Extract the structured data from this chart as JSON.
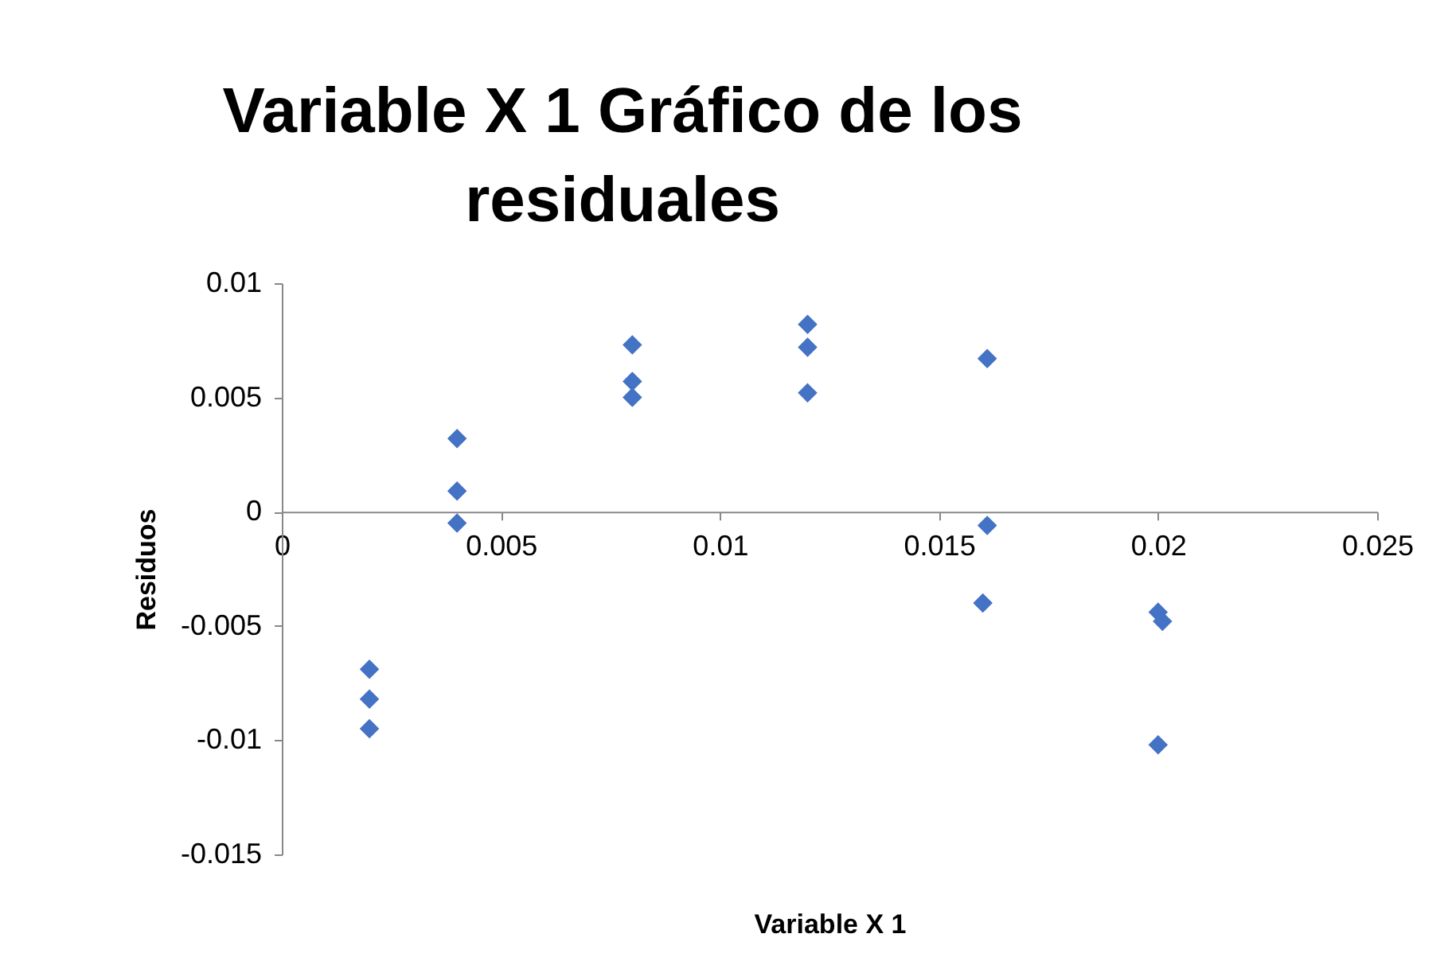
{
  "chart_data": {
    "type": "scatter",
    "title": "Variable X 1 Gráfico de los residuales",
    "xlabel": "Variable X 1",
    "ylabel": "Residuos",
    "x": [
      0.002,
      0.002,
      0.002,
      0.004,
      0.004,
      0.004,
      0.008,
      0.008,
      0.008,
      0.012,
      0.012,
      0.012,
      0.0161,
      0.0161,
      0.016,
      0.02,
      0.0201,
      0.02
    ],
    "values": [
      -0.0069,
      -0.0082,
      -0.0095,
      0.0032,
      0.0009,
      -0.0005,
      0.0073,
      0.0057,
      0.005,
      0.0082,
      0.0072,
      0.0052,
      0.0067,
      -0.0006,
      -0.004,
      -0.0044,
      -0.0048,
      -0.0102
    ],
    "color": "#4472c4",
    "marker": "diamond",
    "grid": false,
    "xlim": [
      0,
      0.025
    ],
    "xticks": [
      0,
      0.005,
      0.01,
      0.015,
      0.02,
      0.025
    ],
    "ylim": [
      -0.015,
      0.01
    ],
    "yticks": [
      -0.015,
      -0.01,
      -0.005,
      0,
      0.005,
      0.01
    ]
  }
}
